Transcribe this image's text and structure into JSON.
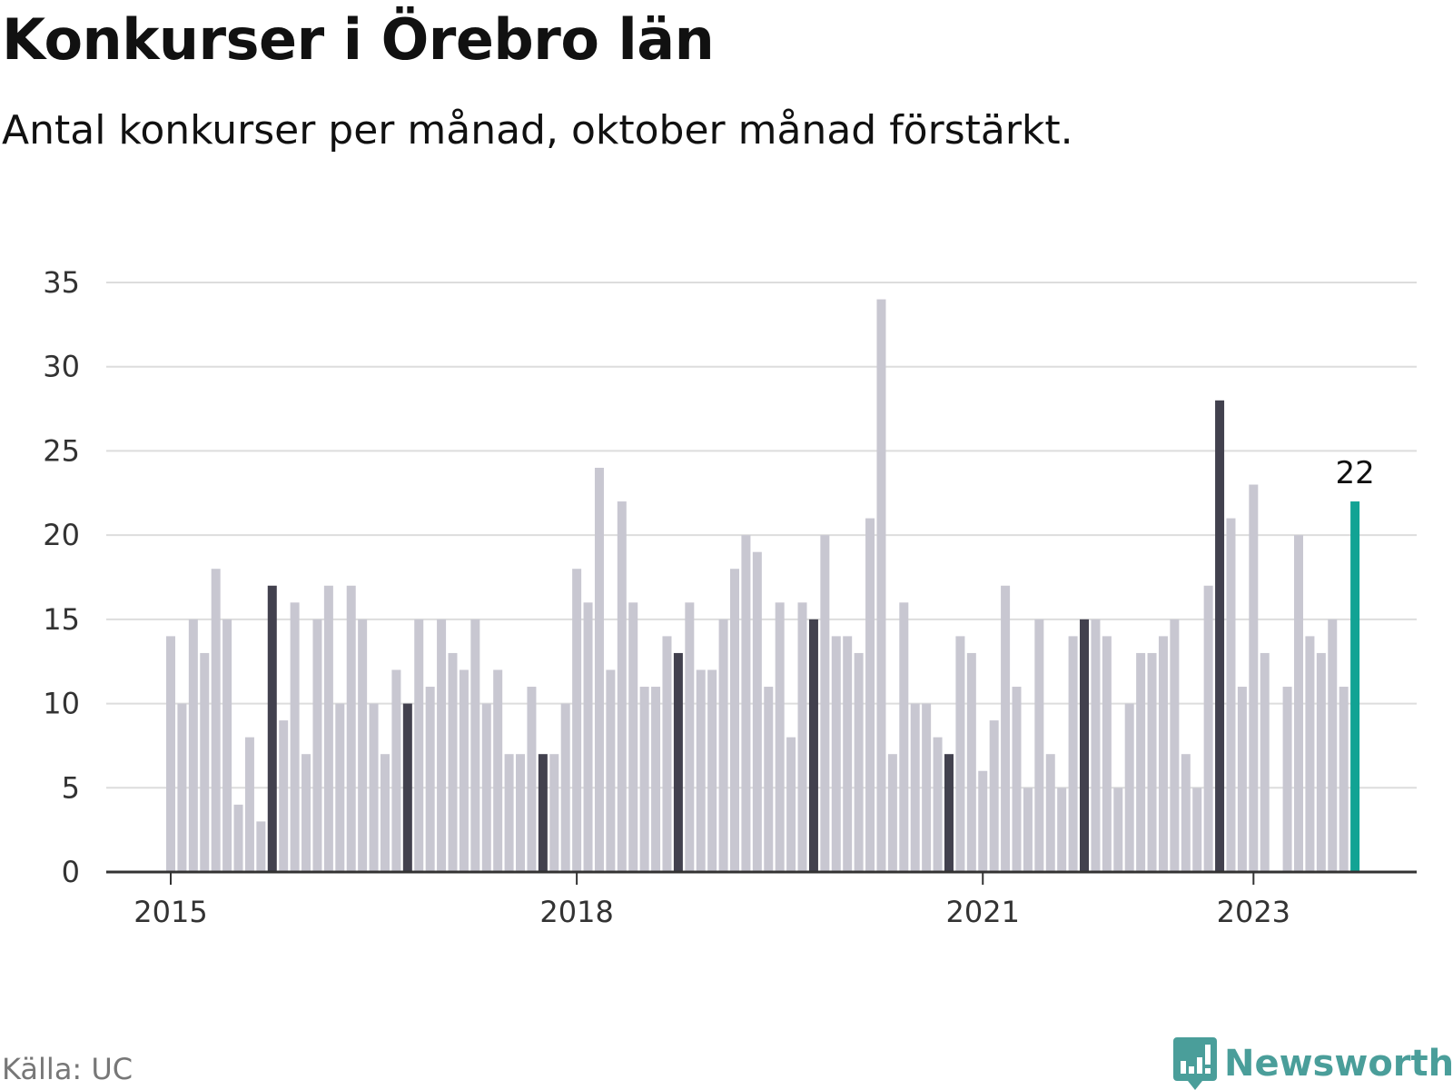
{
  "title": "Konkurser i Örebro län",
  "subtitle": "Antal konkurser per månad, oktober månad förstärkt.",
  "source": "Källa: UC",
  "brand": {
    "name": "Newsworthy",
    "icon": "newsworthy-logo-icon",
    "color": "#4a9e9a"
  },
  "colors": {
    "regular": "#c8c7d1",
    "october": "#42414e",
    "latest": "#12a394",
    "grid": "#dddddd",
    "axis": "#333333"
  },
  "chart_data": {
    "type": "bar",
    "title": "Konkurser i Örebro län",
    "subtitle": "Antal konkurser per månad, oktober månad förstärkt.",
    "xlabel": "",
    "ylabel": "",
    "ylim": [
      0,
      35
    ],
    "yticks": [
      0,
      5,
      10,
      15,
      20,
      25,
      30,
      35
    ],
    "grid": true,
    "xticks": [
      {
        "label": "2015",
        "date": "2015-01"
      },
      {
        "label": "2018",
        "date": "2018-01"
      },
      {
        "label": "2021",
        "date": "2021-01"
      },
      {
        "label": "2023",
        "date": "2023-01"
      }
    ],
    "start_month": "2015-01",
    "highlight": "October of each year",
    "annotations": [
      {
        "date": "2023-10",
        "text": "22"
      }
    ],
    "values": [
      14,
      10,
      15,
      13,
      18,
      15,
      4,
      8,
      3,
      17,
      9,
      16,
      7,
      15,
      17,
      10,
      17,
      15,
      10,
      7,
      12,
      10,
      15,
      11,
      15,
      13,
      12,
      15,
      10,
      12,
      7,
      7,
      11,
      7,
      7,
      10,
      18,
      16,
      24,
      12,
      22,
      16,
      11,
      11,
      14,
      13,
      16,
      12,
      12,
      15,
      18,
      20,
      19,
      11,
      16,
      8,
      16,
      15,
      20,
      14,
      14,
      13,
      21,
      34,
      7,
      16,
      10,
      10,
      8,
      7,
      14,
      13,
      6,
      9,
      17,
      11,
      5,
      15,
      7,
      5,
      14,
      15,
      15,
      14,
      5,
      10,
      13,
      13,
      14,
      15,
      7,
      5,
      17,
      28,
      21,
      11,
      23,
      13,
      0,
      11,
      20,
      14,
      13,
      15,
      11,
      22
    ]
  }
}
